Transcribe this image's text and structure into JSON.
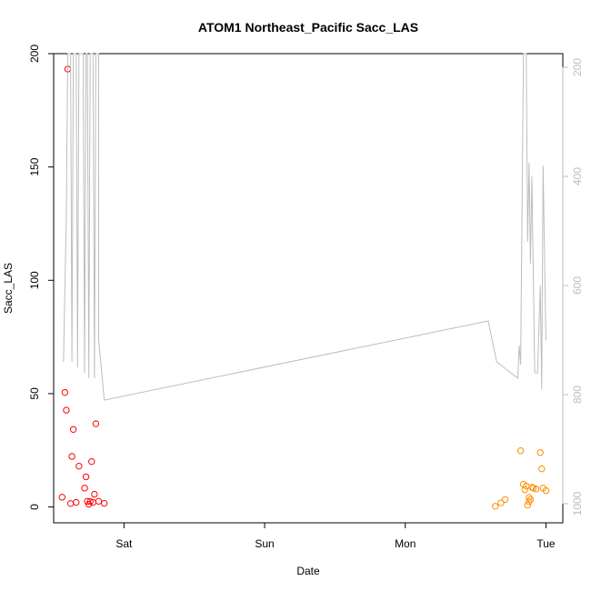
{
  "chart_data": {
    "type": "scatter",
    "title": "ATOM1 Northeast_Pacific Sacc_LAS",
    "xlabel": "Date",
    "ylabel": "Sacc_LAS",
    "x_unit": "days",
    "x_ticks": [
      {
        "value": 1,
        "label": "Sat"
      },
      {
        "value": 2,
        "label": "Sun"
      },
      {
        "value": 3,
        "label": "Mon"
      },
      {
        "value": 4,
        "label": "Tue"
      }
    ],
    "xlim": [
      0.5,
      4.12
    ],
    "ylim": [
      -7,
      200
    ],
    "y_ticks": [
      0,
      50,
      100,
      150,
      200
    ],
    "right_axis": {
      "label": "",
      "color": "#bdbdbd",
      "ticks": [
        200,
        400,
        600,
        800,
        1000
      ],
      "range": [
        175,
        1035
      ],
      "inverted": true
    },
    "series": [
      {
        "marker": "circle-open",
        "color": "#ff0000",
        "points": [
          {
            "x": 0.56,
            "y": 4.3
          },
          {
            "x": 0.58,
            "y": 50.5
          },
          {
            "x": 0.59,
            "y": 42.7
          },
          {
            "x": 0.6,
            "y": 193.2
          },
          {
            "x": 0.62,
            "y": 1.5
          },
          {
            "x": 0.63,
            "y": 22.3
          },
          {
            "x": 0.64,
            "y": 34.2
          },
          {
            "x": 0.66,
            "y": 2.0
          },
          {
            "x": 0.68,
            "y": 18.0
          },
          {
            "x": 0.72,
            "y": 8.3
          },
          {
            "x": 0.73,
            "y": 13.3
          },
          {
            "x": 0.74,
            "y": 2.5
          },
          {
            "x": 0.75,
            "y": 1.2
          },
          {
            "x": 0.76,
            "y": 2.4
          },
          {
            "x": 0.77,
            "y": 20.0
          },
          {
            "x": 0.78,
            "y": 2.0
          },
          {
            "x": 0.79,
            "y": 5.6
          },
          {
            "x": 0.8,
            "y": 36.7
          },
          {
            "x": 0.82,
            "y": 2.5
          },
          {
            "x": 0.86,
            "y": 1.6
          }
        ]
      },
      {
        "marker": "circle-open",
        "color": "#ff8c00",
        "points": [
          {
            "x": 3.64,
            "y": 0.3
          },
          {
            "x": 3.68,
            "y": 1.8
          },
          {
            "x": 3.71,
            "y": 3.3
          },
          {
            "x": 3.82,
            "y": 24.8
          },
          {
            "x": 3.84,
            "y": 10.0
          },
          {
            "x": 3.85,
            "y": 7.6
          },
          {
            "x": 3.86,
            "y": 9.2
          },
          {
            "x": 3.87,
            "y": 0.8
          },
          {
            "x": 3.88,
            "y": 2.3
          },
          {
            "x": 3.88,
            "y": 4.2
          },
          {
            "x": 3.89,
            "y": 3.3
          },
          {
            "x": 3.9,
            "y": 8.7
          },
          {
            "x": 3.91,
            "y": 8.3
          },
          {
            "x": 3.93,
            "y": 7.9
          },
          {
            "x": 3.96,
            "y": 24.0
          },
          {
            "x": 3.97,
            "y": 16.8
          },
          {
            "x": 3.98,
            "y": 8.3
          },
          {
            "x": 4.0,
            "y": 7.2
          }
        ]
      },
      {
        "type": "line",
        "axis": "right",
        "color": "#bdbdbd",
        "points": [
          {
            "x": 0.57,
            "y": 740
          },
          {
            "x": 0.59,
            "y": 480
          },
          {
            "x": 0.6,
            "y": 175
          },
          {
            "x": 0.62,
            "y": 175
          },
          {
            "x": 0.63,
            "y": 740
          },
          {
            "x": 0.64,
            "y": 175
          },
          {
            "x": 0.66,
            "y": 175
          },
          {
            "x": 0.67,
            "y": 750
          },
          {
            "x": 0.68,
            "y": 175
          },
          {
            "x": 0.71,
            "y": 175
          },
          {
            "x": 0.72,
            "y": 760
          },
          {
            "x": 0.73,
            "y": 175
          },
          {
            "x": 0.74,
            "y": 175
          },
          {
            "x": 0.75,
            "y": 770
          },
          {
            "x": 0.76,
            "y": 175
          },
          {
            "x": 0.78,
            "y": 175
          },
          {
            "x": 0.79,
            "y": 770
          },
          {
            "x": 0.8,
            "y": 175
          },
          {
            "x": 0.82,
            "y": 175
          },
          {
            "x": 0.82,
            "y": 700
          },
          {
            "x": 0.86,
            "y": 810
          },
          {
            "x": 3.59,
            "y": 665
          },
          {
            "x": 3.65,
            "y": 740
          },
          {
            "x": 3.8,
            "y": 770
          },
          {
            "x": 3.81,
            "y": 710
          },
          {
            "x": 3.82,
            "y": 745
          },
          {
            "x": 3.84,
            "y": 175
          },
          {
            "x": 3.86,
            "y": 175
          },
          {
            "x": 3.87,
            "y": 520
          },
          {
            "x": 3.88,
            "y": 375
          },
          {
            "x": 3.89,
            "y": 560
          },
          {
            "x": 3.9,
            "y": 400
          },
          {
            "x": 3.92,
            "y": 760
          },
          {
            "x": 3.94,
            "y": 760
          },
          {
            "x": 3.96,
            "y": 600
          },
          {
            "x": 3.97,
            "y": 790
          },
          {
            "x": 3.98,
            "y": 380
          },
          {
            "x": 4.0,
            "y": 700
          }
        ]
      }
    ]
  }
}
